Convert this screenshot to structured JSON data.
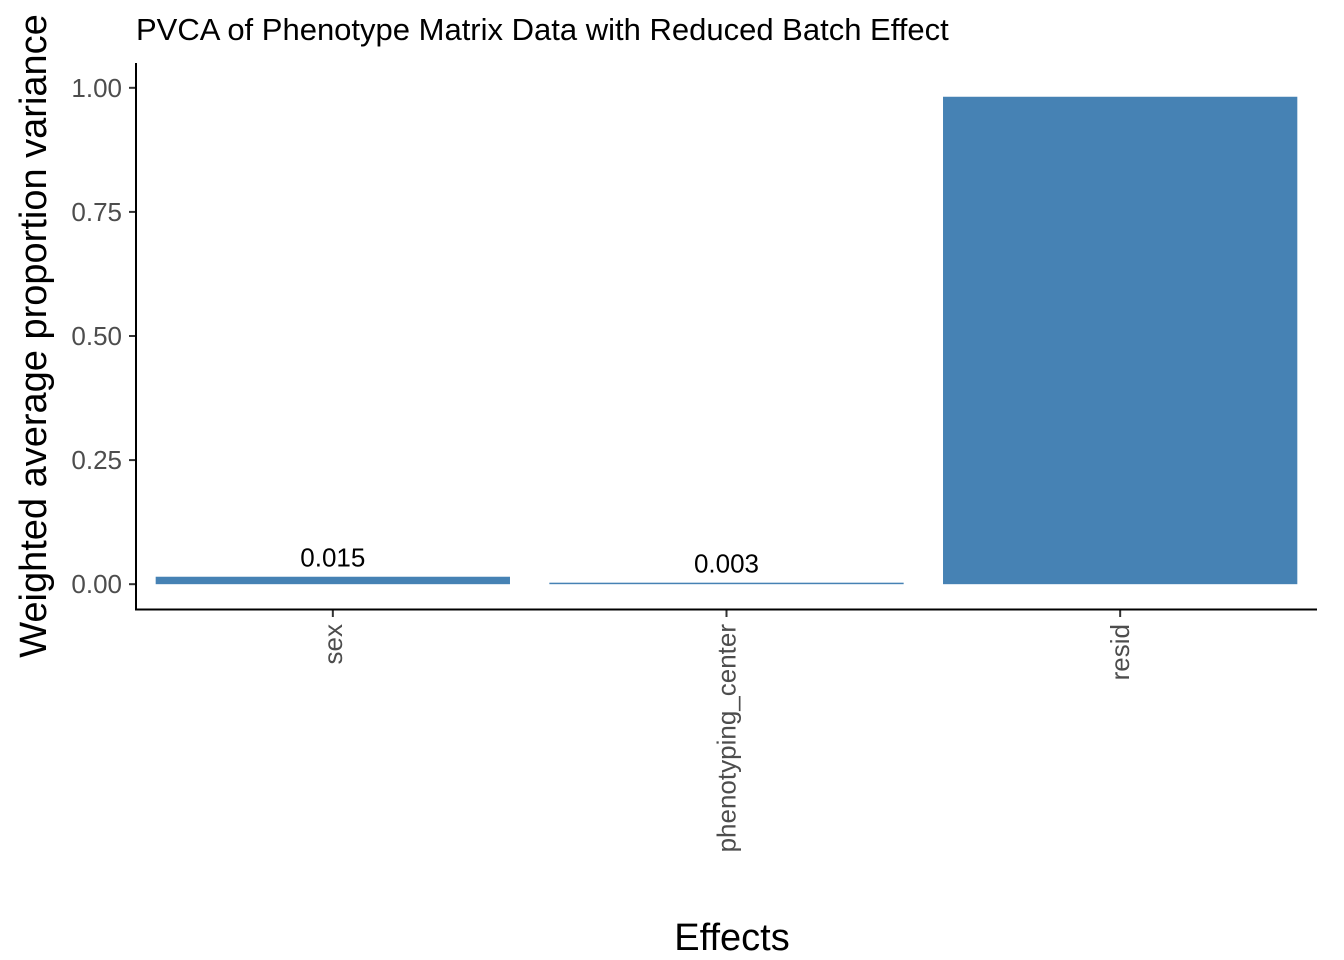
{
  "chart_data": {
    "type": "bar",
    "title": "PVCA of Phenotype Matrix Data with Reduced Batch Effect",
    "xlabel": "Effects",
    "ylabel": "Weighted average proportion variance",
    "categories": [
      "sex",
      "phenotyping_center",
      "resid"
    ],
    "values": [
      0.015,
      0.003,
      0.982
    ],
    "data_labels": [
      "0.015",
      "0.003",
      ""
    ],
    "ylim": [
      -0.05,
      1.05
    ],
    "yticks": [
      0.0,
      0.25,
      0.5,
      0.75,
      1.0
    ],
    "ytick_labels": [
      "0.00",
      "0.25",
      "0.50",
      "0.75",
      "1.00"
    ],
    "bar_color": "#4682B4",
    "grid": false,
    "legend": "none"
  }
}
